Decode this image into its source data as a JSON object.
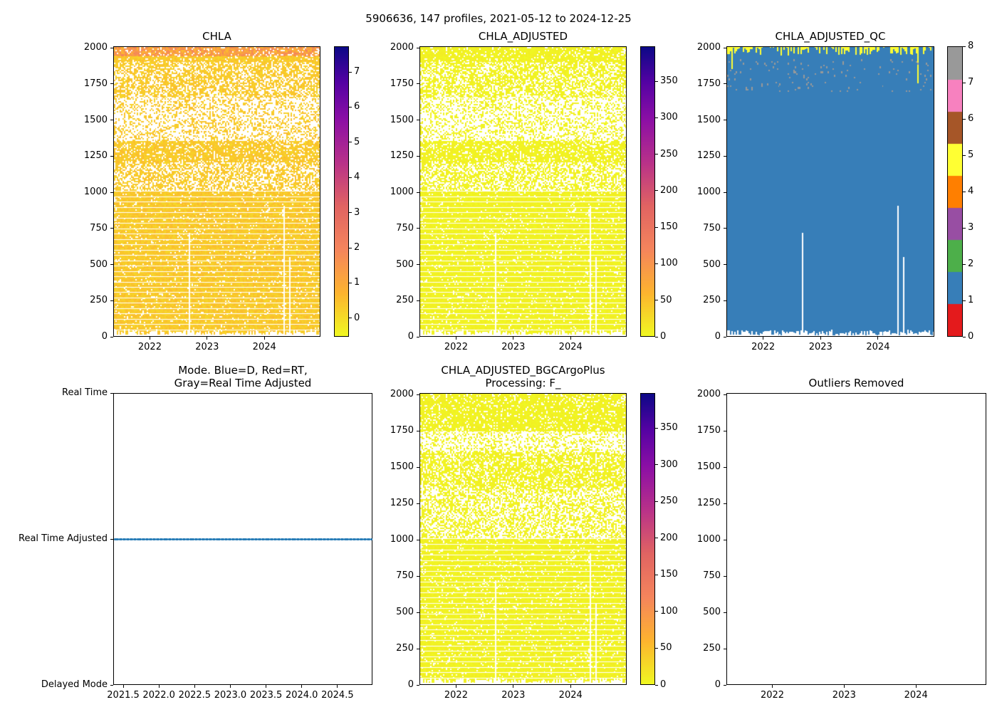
{
  "chart_data": {
    "title": "5906636, 147 profiles, 2021-05-12 to 2024-12-25",
    "n_profiles": 147,
    "date_start": "2021-05-12",
    "date_end": "2024-12-25",
    "panels": [
      {
        "type": "heatmap",
        "kind": "chla",
        "title_lines": [
          "CHLA"
        ],
        "xlim": [
          2021.36,
          2024.98
        ],
        "ylim": [
          2010,
          0
        ],
        "xticks": [
          2022,
          2023,
          2024
        ],
        "xtick_labels": [
          "2022",
          "2023",
          "2024"
        ],
        "yticks": [
          0,
          250,
          500,
          750,
          1000,
          1250,
          1500,
          1750,
          2000
        ],
        "ytick_labels": [
          "0",
          "250",
          "500",
          "750",
          "1000",
          "1250",
          "1500",
          "1750",
          "2000"
        ],
        "colorbar": {
          "cmap": "plasma_r",
          "range": [
            -0.53,
            7.73
          ],
          "ticks": [
            0,
            1,
            2,
            3,
            4,
            5,
            6,
            7
          ],
          "tick_labels": [
            "0",
            "1",
            "2",
            "3",
            "4",
            "5",
            "6",
            "7"
          ]
        }
      },
      {
        "type": "heatmap",
        "kind": "adj",
        "title_lines": [
          "CHLA_ADJUSTED"
        ],
        "xlim": [
          2021.36,
          2024.98
        ],
        "ylim": [
          2010,
          0
        ],
        "xticks": [
          2022,
          2023,
          2024
        ],
        "xtick_labels": [
          "2022",
          "2023",
          "2024"
        ],
        "yticks": [
          0,
          250,
          500,
          750,
          1000,
          1250,
          1500,
          1750,
          2000
        ],
        "ytick_labels": [
          "0",
          "250",
          "500",
          "750",
          "1000",
          "1250",
          "1500",
          "1750",
          "2000"
        ],
        "colorbar": {
          "cmap": "plasma_r",
          "range": [
            0,
            398
          ],
          "ticks": [
            0,
            50,
            100,
            150,
            200,
            250,
            300,
            350
          ],
          "tick_labels": [
            "0",
            "50",
            "100",
            "150",
            "200",
            "250",
            "300",
            "350"
          ]
        }
      },
      {
        "type": "heatmap",
        "kind": "qc",
        "title_lines": [
          "CHLA_ADJUSTED_QC"
        ],
        "xlim": [
          2021.36,
          2024.98
        ],
        "ylim": [
          2010,
          0
        ],
        "xticks": [
          2022,
          2023,
          2024
        ],
        "xtick_labels": [
          "2022",
          "2023",
          "2024"
        ],
        "yticks": [
          0,
          250,
          500,
          750,
          1000,
          1250,
          1500,
          1750,
          2000
        ],
        "ytick_labels": [
          "0",
          "250",
          "500",
          "750",
          "1000",
          "1250",
          "1500",
          "1750",
          "2000"
        ],
        "colorbar": {
          "cmap": "Set1",
          "range": [
            0,
            8
          ],
          "ticks": [
            0,
            1,
            2,
            3,
            4,
            5,
            6,
            7,
            8
          ],
          "tick_labels": [
            "0",
            "1",
            "2",
            "3",
            "4",
            "5",
            "6",
            "7",
            "8"
          ],
          "discrete_colors": [
            "#e41a1c",
            "#377eb8",
            "#4daf4a",
            "#984ea3",
            "#ff7f00",
            "#ffff33",
            "#a65628",
            "#f781bf",
            "#999999"
          ]
        }
      },
      {
        "type": "line",
        "kind": "mode",
        "title_lines": [
          "Mode. Blue=D, Red=RT,",
          "Gray=Real Time Adjusted"
        ],
        "xlim": [
          2021.36,
          2024.99
        ],
        "ylim": [
          0,
          2
        ],
        "xticks": [
          2021.5,
          2022.0,
          2022.5,
          2023.0,
          2023.5,
          2024.0,
          2024.5
        ],
        "xtick_labels": [
          "2021.5",
          "2022.0",
          "2022.5",
          "2023.0",
          "2023.5",
          "2024.0",
          "2024.5"
        ],
        "yticks": [
          2,
          1,
          0
        ],
        "ytick_labels": [
          "Delayed Mode",
          "Real Time Adjusted",
          "Real Time"
        ],
        "series": [
          {
            "name": "mode",
            "color": "#1f77b4",
            "value_all_profiles": 1
          }
        ]
      },
      {
        "type": "heatmap",
        "kind": "bgc",
        "title_lines": [
          "CHLA_ADJUSTED_BGCArgoPlus",
          "Processing: F_"
        ],
        "xlim": [
          2021.36,
          2024.98
        ],
        "ylim": [
          2010,
          0
        ],
        "xticks": [
          2022,
          2023,
          2024
        ],
        "xtick_labels": [
          "2022",
          "2023",
          "2024"
        ],
        "yticks": [
          0,
          250,
          500,
          750,
          1000,
          1250,
          1500,
          1750,
          2000
        ],
        "ytick_labels": [
          "0",
          "250",
          "500",
          "750",
          "1000",
          "1250",
          "1500",
          "1750",
          "2000"
        ],
        "colorbar": {
          "cmap": "plasma_r",
          "range": [
            0,
            398
          ],
          "ticks": [
            0,
            50,
            100,
            150,
            200,
            250,
            300,
            350
          ],
          "tick_labels": [
            "0",
            "50",
            "100",
            "150",
            "200",
            "250",
            "300",
            "350"
          ]
        }
      },
      {
        "type": "heatmap",
        "kind": "empty",
        "title_lines": [
          "Outliers Removed"
        ],
        "xlim": [
          2021.36,
          2024.98
        ],
        "ylim": [
          2010,
          0
        ],
        "xticks": [
          2022,
          2023,
          2024
        ],
        "xtick_labels": [
          "2022",
          "2023",
          "2024"
        ],
        "yticks": [
          0,
          250,
          500,
          750,
          1000,
          1250,
          1500,
          1750,
          2000
        ],
        "ytick_labels": [
          "0",
          "250",
          "500",
          "750",
          "1000",
          "1250",
          "1500",
          "1750",
          "2000"
        ]
      }
    ]
  }
}
